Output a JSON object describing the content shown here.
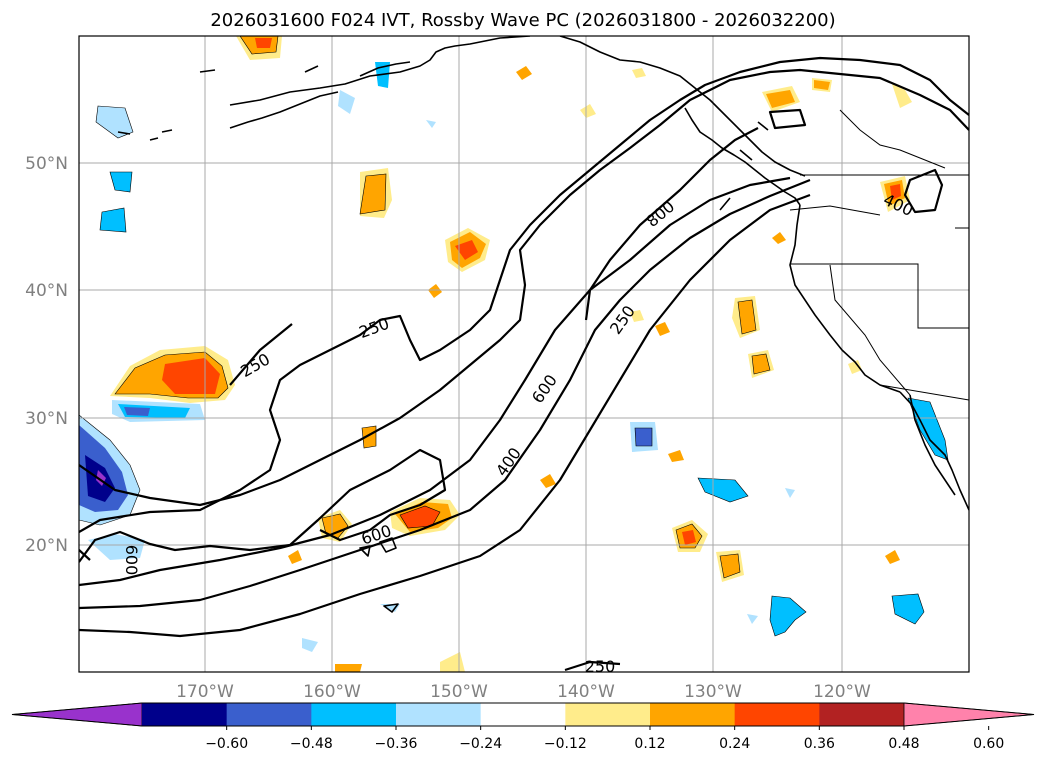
{
  "title": "2026031600 F024 IVT, Rossby Wave PC (2026031800 - 2026032200)",
  "lat_labels": [
    "50°N",
    "40°N",
    "30°N",
    "20°N"
  ],
  "lon_labels": [
    "170°W",
    "160°W",
    "150°W",
    "140°W",
    "130°W",
    "120°W"
  ],
  "contour_labels": [
    "250",
    "250",
    "250",
    "250",
    "400",
    "400",
    "600",
    "600",
    "600",
    "800"
  ],
  "colorbar": {
    "colors": [
      "#9932cc",
      "#00008b",
      "#3a5fcd",
      "#00bfff",
      "#b0e2ff",
      "#ffffff",
      "#ffec8b",
      "#ffa500",
      "#ff4500",
      "#b22222",
      "#ff82ab"
    ],
    "ticks": [
      "−0.60",
      "−0.48",
      "−0.36",
      "−0.24",
      "−0.12",
      "0.12",
      "0.24",
      "0.36",
      "0.48",
      "0.60"
    ],
    "extend": "both"
  }
}
